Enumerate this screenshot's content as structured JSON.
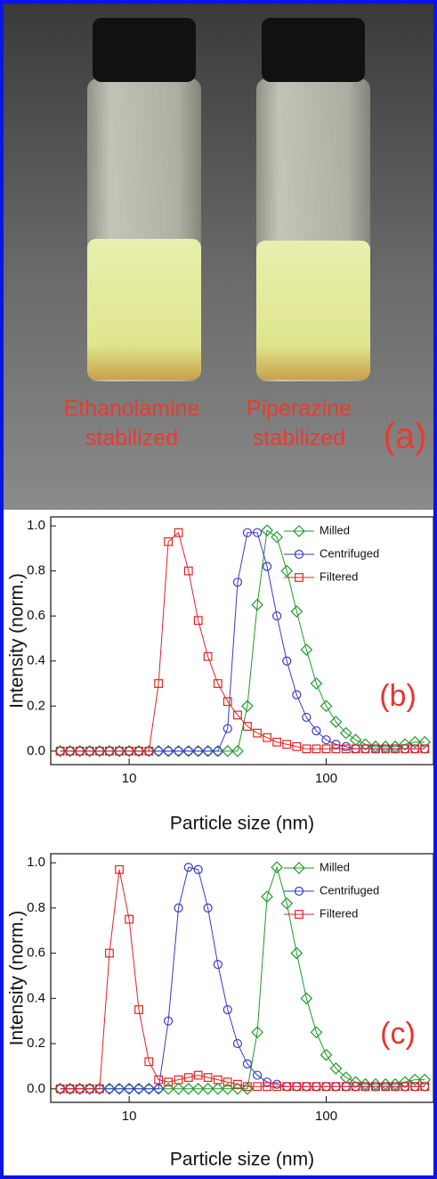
{
  "photo": {
    "labels": [
      "Ethanolamine",
      "stabilized",
      "Piperazine",
      "stabilized"
    ],
    "panel_label": "(a)"
  },
  "chart_data": [
    {
      "type": "line",
      "panel_label": "(b)",
      "x_label": "Particle size (nm)",
      "y_label": "Intensity (norm.)",
      "x_log": true,
      "xlim": [
        4,
        350
      ],
      "xticks": [
        10,
        100
      ],
      "ylim": [
        -0.06,
        1.04
      ],
      "yticks": [
        {
          "value": 0,
          "label": "0.0"
        },
        {
          "value": 0.2,
          "label": "0.2"
        },
        {
          "value": 0.4,
          "label": "0.4"
        },
        {
          "value": 0.6,
          "label": "0.6"
        },
        {
          "value": 0.8,
          "label": "0.8"
        },
        {
          "value": 1,
          "label": "1.0"
        }
      ],
      "legend": "upper right",
      "x": [
        4.47,
        5.01,
        5.62,
        6.31,
        7.08,
        7.94,
        8.91,
        10.0,
        11.2,
        12.6,
        14.1,
        15.8,
        17.8,
        20.0,
        22.4,
        25.1,
        28.2,
        31.6,
        35.5,
        39.8,
        44.7,
        50.1,
        56.2,
        63.1,
        70.8,
        79.4,
        89.1,
        100,
        112,
        126,
        141,
        158,
        178,
        200,
        224,
        251,
        282,
        316
      ],
      "series": [
        {
          "name": "Milled",
          "color": "#1f9a2a",
          "marker": "diamond",
          "values": [
            0,
            0,
            0,
            0,
            0,
            0,
            0,
            0,
            0,
            0,
            0,
            0,
            0,
            0,
            0,
            0,
            0,
            0,
            0,
            0.2,
            0.65,
            0.98,
            0.95,
            0.8,
            0.62,
            0.45,
            0.3,
            0.2,
            0.13,
            0.08,
            0.05,
            0.03,
            0.02,
            0.02,
            0.02,
            0.03,
            0.04,
            0.04
          ]
        },
        {
          "name": "Centrifuged",
          "color": "#3a3ac8",
          "marker": "circle",
          "values": [
            0,
            0,
            0,
            0,
            0,
            0,
            0,
            0,
            0,
            0,
            0,
            0,
            0,
            0,
            0,
            0,
            0,
            0.1,
            0.75,
            0.97,
            0.97,
            0.82,
            0.6,
            0.4,
            0.25,
            0.15,
            0.09,
            0.05,
            0.03,
            0.02,
            0.01,
            0.01,
            0.01,
            0.01,
            0.01,
            0.01,
            0.01,
            0.01
          ]
        },
        {
          "name": "Filtered",
          "color": "#e02424",
          "marker": "square",
          "values": [
            0,
            0,
            0,
            0,
            0,
            0,
            0,
            0,
            0,
            0,
            0.3,
            0.93,
            0.97,
            0.8,
            0.58,
            0.42,
            0.3,
            0.22,
            0.16,
            0.11,
            0.08,
            0.06,
            0.04,
            0.03,
            0.02,
            0.01,
            0.01,
            0.01,
            0.01,
            0.01,
            0.01,
            0.01,
            0.01,
            0.01,
            0.01,
            0.01,
            0.01,
            0.01
          ]
        }
      ]
    },
    {
      "type": "line",
      "panel_label": "(c)",
      "x_label": "Particle size (nm)",
      "y_label": "Intensity (norm.)",
      "x_log": true,
      "xlim": [
        4,
        350
      ],
      "xticks": [
        10,
        100
      ],
      "ylim": [
        -0.06,
        1.04
      ],
      "yticks": [
        {
          "value": 0,
          "label": "0.0"
        },
        {
          "value": 0.2,
          "label": "0.2"
        },
        {
          "value": 0.4,
          "label": "0.4"
        },
        {
          "value": 0.6,
          "label": "0.6"
        },
        {
          "value": 0.8,
          "label": "0.8"
        },
        {
          "value": 1,
          "label": "1.0"
        }
      ],
      "legend": "upper right",
      "x": [
        4.47,
        5.01,
        5.62,
        6.31,
        7.08,
        7.94,
        8.91,
        10.0,
        11.2,
        12.6,
        14.1,
        15.8,
        17.8,
        20.0,
        22.4,
        25.1,
        28.2,
        31.6,
        35.5,
        39.8,
        44.7,
        50.1,
        56.2,
        63.1,
        70.8,
        79.4,
        89.1,
        100,
        112,
        126,
        141,
        158,
        178,
        200,
        224,
        251,
        282,
        316
      ],
      "series": [
        {
          "name": "Milled",
          "color": "#1f9a2a",
          "marker": "diamond",
          "values": [
            0,
            0,
            0,
            0,
            0,
            0,
            0,
            0,
            0,
            0,
            0,
            0,
            0,
            0,
            0,
            0,
            0,
            0,
            0,
            0,
            0.25,
            0.85,
            0.98,
            0.82,
            0.6,
            0.4,
            0.25,
            0.15,
            0.09,
            0.05,
            0.03,
            0.02,
            0.02,
            0.02,
            0.02,
            0.03,
            0.04,
            0.04
          ]
        },
        {
          "name": "Centrifuged",
          "color": "#3a3ac8",
          "marker": "circle",
          "values": [
            0,
            0,
            0,
            0,
            0,
            0,
            0,
            0,
            0,
            0,
            0,
            0.3,
            0.8,
            0.98,
            0.97,
            0.8,
            0.55,
            0.35,
            0.2,
            0.11,
            0.06,
            0.03,
            0.02,
            0.01,
            0.01,
            0.01,
            0.01,
            0.01,
            0.01,
            0.01,
            0.01,
            0.01,
            0.01,
            0.01,
            0.01,
            0.01,
            0.01,
            0.01
          ]
        },
        {
          "name": "Filtered",
          "color": "#e02424",
          "marker": "square",
          "values": [
            0,
            0,
            0,
            0,
            0,
            0.6,
            0.97,
            0.75,
            0.35,
            0.12,
            0.04,
            0.03,
            0.04,
            0.05,
            0.06,
            0.05,
            0.04,
            0.03,
            0.02,
            0.01,
            0.01,
            0.01,
            0.01,
            0.01,
            0.01,
            0.01,
            0.01,
            0.01,
            0.01,
            0.01,
            0.01,
            0.01,
            0.01,
            0.01,
            0.01,
            0.01,
            0.01,
            0.01
          ]
        }
      ]
    }
  ]
}
